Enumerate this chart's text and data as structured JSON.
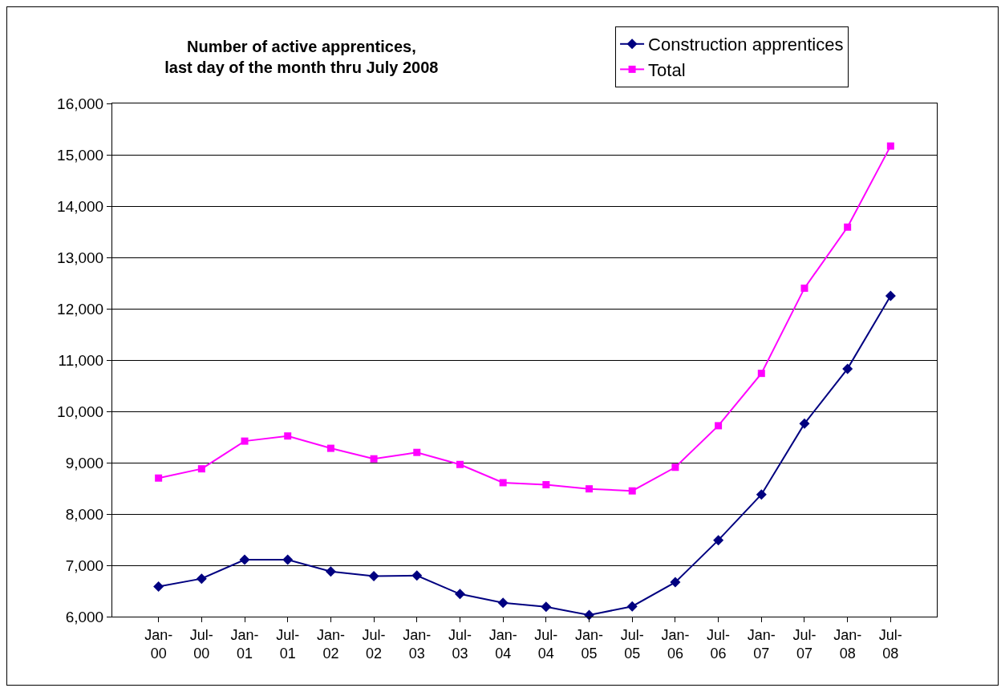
{
  "chart_data": {
    "type": "line",
    "title": "Number of active apprentices,\nlast day of the month thru July 2008",
    "categories": [
      "Jan-00",
      "Jul-00",
      "Jan-01",
      "Jul-01",
      "Jan-02",
      "Jul-02",
      "Jan-03",
      "Jul-03",
      "Jan-04",
      "Jul-04",
      "Jan-05",
      "Jul-05",
      "Jan-06",
      "Jul-06",
      "Jan-07",
      "Jul-07",
      "Jan-08",
      "Jul-08"
    ],
    "series": [
      {
        "name": "Construction apprentices",
        "color": "#000080",
        "marker": "diamond",
        "values": [
          6585,
          6740,
          7110,
          7110,
          6880,
          6790,
          6800,
          6440,
          6270,
          6190,
          6030,
          6200,
          6670,
          7490,
          8380,
          9760,
          10830,
          12250
        ]
      },
      {
        "name": "Total",
        "color": "#ff00ff",
        "marker": "square",
        "values": [
          8700,
          8880,
          9420,
          9520,
          9280,
          9075,
          9200,
          8965,
          8610,
          8570,
          8490,
          8450,
          8910,
          9720,
          10740,
          12400,
          13590,
          15170
        ]
      }
    ],
    "ylim": [
      6000,
      16000
    ],
    "yticks": [
      {
        "value": 6000,
        "label": "6,000"
      },
      {
        "value": 7000,
        "label": "7,000"
      },
      {
        "value": 8000,
        "label": "8,000"
      },
      {
        "value": 9000,
        "label": "9,000"
      },
      {
        "value": 10000,
        "label": "10,000"
      },
      {
        "value": 11000,
        "label": "11,000"
      },
      {
        "value": 12000,
        "label": "12,000"
      },
      {
        "value": 13000,
        "label": "13,000"
      },
      {
        "value": 14000,
        "label": "14,000"
      },
      {
        "value": 15000,
        "label": "15,000"
      },
      {
        "value": 16000,
        "label": "16,000"
      }
    ],
    "grid": "y",
    "legend": "top right",
    "line_style": "solid"
  }
}
